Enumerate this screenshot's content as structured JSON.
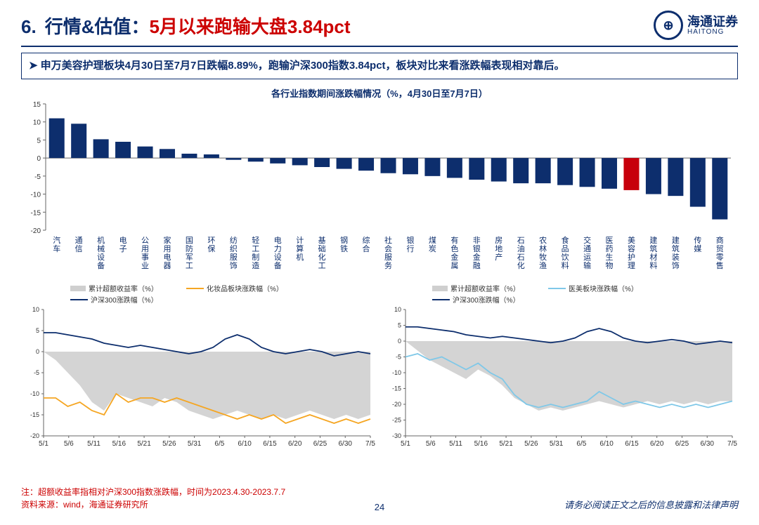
{
  "title_num": "6.",
  "title_black": "行情&估值：",
  "title_red": "5月以来跑输大盘3.84pct",
  "logo_cn": "海通证券",
  "logo_en": "HAITONG",
  "bullet": "申万美容护理板块4月30日至7月7日跌幅8.89%，跑输沪深300指数3.84pct，板块对比来看涨跌幅表现相对靠后。",
  "bar_chart": {
    "title": "各行业指数期间涨跌幅情况（%，4月30日至7月7日）",
    "title_fontsize": 13,
    "title_color": "#0d2e6d",
    "ylim": [
      -20,
      15
    ],
    "ytick_step": 5,
    "axis_color": "#666",
    "categories": [
      "汽车",
      "通信",
      "机械设备",
      "电子",
      "公用事业",
      "家用电器",
      "国防军工",
      "环保",
      "纺织服饰",
      "轻工制造",
      "电力设备",
      "计算机",
      "基础化工",
      "钢铁",
      "综合",
      "社会服务",
      "银行",
      "煤炭",
      "有色金属",
      "非银金融",
      "房地产",
      "石油石化",
      "农林牧渔",
      "食品饮料",
      "交通运输",
      "医药生物",
      "美容护理",
      "建筑材料",
      "建筑装饰",
      "传媒",
      "商贸零售"
    ],
    "values": [
      11,
      9.5,
      5.2,
      4.5,
      3.2,
      2.5,
      1.2,
      1,
      -0.5,
      -1,
      -1.5,
      -2,
      -2.5,
      -3,
      -3.5,
      -4.2,
      -4.5,
      -5,
      -5.5,
      -6,
      -6.5,
      -7,
      -7,
      -7.5,
      -8,
      -8.5,
      -8.9,
      -10,
      -10.5,
      -13.5,
      -17
    ],
    "bar_color": "#0d2e6d",
    "highlight_index": 26,
    "highlight_color": "#c7000b",
    "label_fontsize": 11,
    "label_color": "#0d2e6d"
  },
  "line_left": {
    "legend": {
      "area": "累计超额收益率（%）",
      "line1": "化妆品板块涨跌幅（%）",
      "line2": "沪深300涨跌幅（%）"
    },
    "colors": {
      "area": "#cfcfcf",
      "line1": "#f5a623",
      "line2": "#0d2e6d",
      "axis": "#666"
    },
    "ylim": [
      -20,
      10
    ],
    "ytick_step": 5,
    "xlabels": [
      "5/1",
      "5/6",
      "5/11",
      "5/16",
      "5/21",
      "5/26",
      "5/31",
      "6/5",
      "6/10",
      "6/15",
      "6/20",
      "6/25",
      "6/30",
      "7/5"
    ],
    "area_data": [
      0,
      -2,
      -5,
      -8,
      -12,
      -14,
      -10,
      -11,
      -12,
      -13,
      -11,
      -12,
      -14,
      -15,
      -16,
      -15,
      -14,
      -15,
      -16,
      -15,
      -16,
      -15,
      -14,
      -15,
      -16,
      -15,
      -16,
      -15
    ],
    "line1_data": [
      -11,
      -11,
      -13,
      -12,
      -14,
      -15,
      -10,
      -12,
      -11,
      -11,
      -12,
      -11,
      -12,
      -13,
      -14,
      -15,
      -16,
      -15,
      -16,
      -15,
      -17,
      -16,
      -15,
      -16,
      -17,
      -16,
      -17,
      -16
    ],
    "line2_data": [
      4.5,
      4.5,
      4,
      3.5,
      3,
      2,
      1.5,
      1,
      1.5,
      1,
      0.5,
      0,
      -0.5,
      0,
      1,
      3,
      4,
      3,
      1,
      0,
      -0.5,
      0,
      0.5,
      0,
      -1,
      -0.5,
      0,
      -0.5
    ],
    "label_fontsize": 10
  },
  "line_right": {
    "legend": {
      "area": "累计超额收益率（%）",
      "line1": "医美板块涨跌幅（%）",
      "line2": "沪深300涨跌幅（%）"
    },
    "colors": {
      "area": "#cfcfcf",
      "line1": "#7fc8e8",
      "line2": "#0d2e6d",
      "axis": "#666"
    },
    "ylim": [
      -30,
      10
    ],
    "ytick_step": 5,
    "xlabels": [
      "5/1",
      "5/6",
      "5/11",
      "5/16",
      "5/21",
      "5/26",
      "5/31",
      "6/5",
      "6/10",
      "6/15",
      "6/20",
      "6/25",
      "6/30",
      "7/5"
    ],
    "area_data": [
      0,
      -3,
      -6,
      -8,
      -10,
      -12,
      -9,
      -11,
      -14,
      -18,
      -20,
      -22,
      -21,
      -22,
      -21,
      -20,
      -19,
      -20,
      -21,
      -20,
      -19,
      -20,
      -19,
      -20,
      -19,
      -20,
      -19,
      -19
    ],
    "line1_data": [
      -5,
      -4,
      -6,
      -5,
      -7,
      -9,
      -7,
      -10,
      -12,
      -17,
      -20,
      -21,
      -20,
      -21,
      -20,
      -19,
      -16,
      -18,
      -20,
      -19,
      -20,
      -21,
      -20,
      -21,
      -20,
      -21,
      -20,
      -19
    ],
    "line2_data": [
      4.5,
      4.5,
      4,
      3.5,
      3,
      2,
      1.5,
      1,
      1.5,
      1,
      0.5,
      0,
      -0.5,
      0,
      1,
      3,
      4,
      3,
      1,
      0,
      -0.5,
      0,
      0.5,
      0,
      -1,
      -0.5,
      0,
      -0.5
    ],
    "label_fontsize": 10
  },
  "foot_note1": "注：超额收益率指相对沪深300指数涨跌幅，时间为2023.4.30-2023.7.7",
  "foot_note2": "资料来源：wind，海通证券研究所",
  "page_num": "24",
  "disclaimer": "请务必阅读正文之后的信息披露和法律声明"
}
